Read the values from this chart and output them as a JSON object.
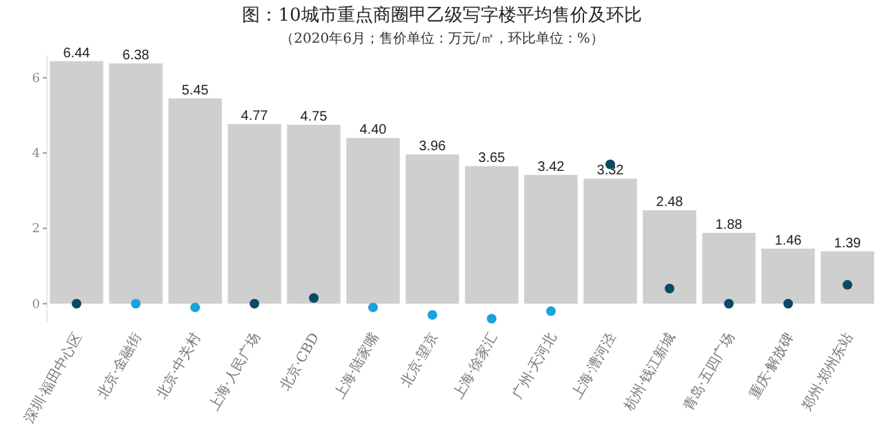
{
  "chart_data": {
    "type": "bar",
    "title": "图：10城市重点商圈甲乙级写字楼平均售价及环比",
    "subtitle": "（2020年6月；售价单位：万元/㎡，环比单位：%）",
    "categories": [
      "深圳·福田中心区",
      "北京·金融街",
      "北京·中关村",
      "上海·人民广场",
      "北京·CBD",
      "上海·陆家嘴",
      "北京·望京",
      "上海·徐家汇",
      "广州·天河北",
      "上海·漕河泾",
      "杭州·钱江新城",
      "青岛·五四广场",
      "重庆·解放碑",
      "郑州·郑州东站"
    ],
    "ylim": [
      -0.5,
      6.6
    ],
    "yticks": [
      0,
      2,
      4,
      6
    ],
    "grid": false,
    "series": [
      {
        "type": "bar",
        "color": "#cfcfcf",
        "values": [
          6.44,
          6.38,
          5.45,
          4.77,
          4.75,
          4.4,
          3.96,
          3.65,
          3.42,
          3.32,
          2.48,
          1.88,
          1.46,
          1.39
        ],
        "value_labels": [
          "6.44",
          "6.38",
          "5.45",
          "4.77",
          "4.75",
          "4.40",
          "3.96",
          "3.65",
          "3.42",
          "3.32",
          "2.48",
          "1.88",
          "1.46",
          "1.39"
        ]
      },
      {
        "type": "scatter",
        "marker": "circle",
        "values": [
          0,
          0,
          -0.1,
          0,
          0.15,
          -0.1,
          -0.3,
          -0.4,
          -0.2,
          3.7,
          0.4,
          0,
          0,
          0.5
        ],
        "colors": [
          "#0b4a66",
          "#1aa3dc",
          "#1aa3dc",
          "#0b4a66",
          "#0b4a66",
          "#1aa3dc",
          "#1aa3dc",
          "#1aa3dc",
          "#1aa3dc",
          "#0b4a66",
          "#0b4a66",
          "#0b4a66",
          "#0b4a66",
          "#0b4a66"
        ]
      }
    ]
  }
}
